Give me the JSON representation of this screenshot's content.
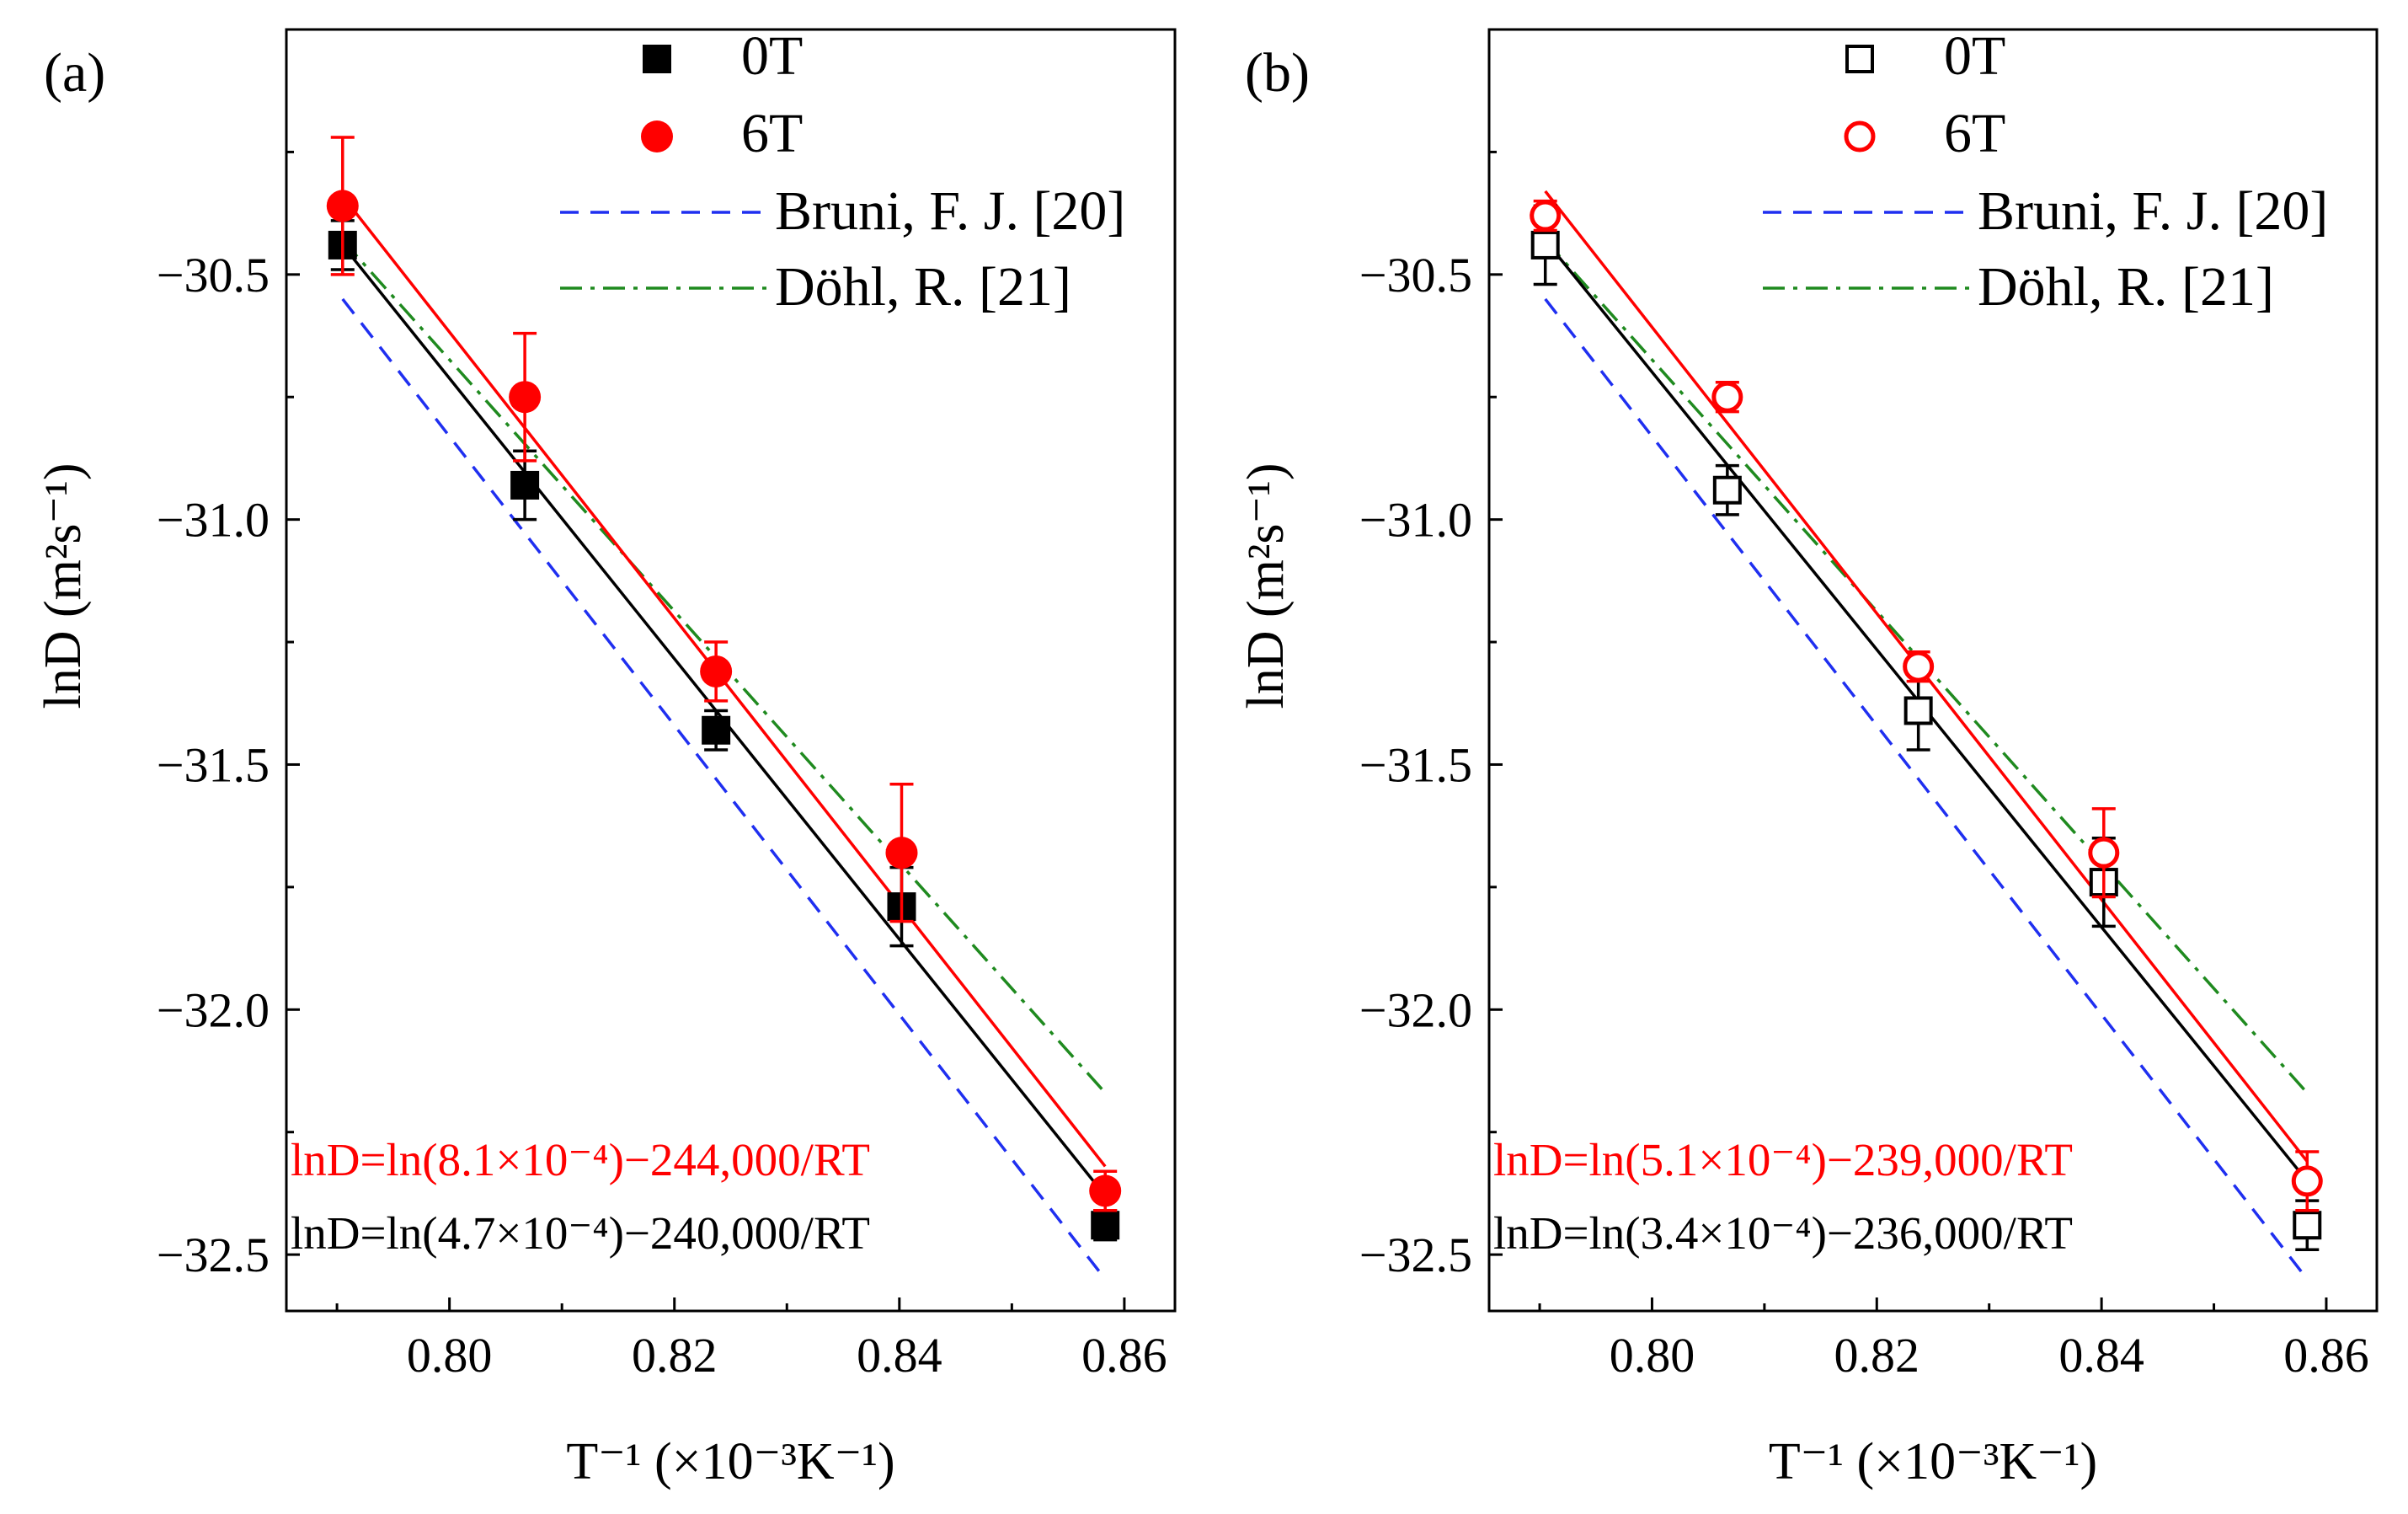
{
  "chart_data": [
    {
      "type": "scatter",
      "panel_label": "(a)",
      "xlabel": "T⁻¹ (×10⁻³K⁻¹)",
      "ylabel": "lnD (m²s⁻¹)",
      "xlim": [
        0.7855,
        0.8645
      ],
      "ylim": [
        -32.615,
        -30.0
      ],
      "xticks": [
        "0.80",
        "0.82",
        "0.84",
        "0.86"
      ],
      "yticks": [
        "−30.5",
        "−31.0",
        "−31.5",
        "−32.0",
        "−32.5"
      ],
      "legend_position": "top-right",
      "series": [
        {
          "name": "0T",
          "marker": "square-filled",
          "color": "#000000",
          "x": [
            0.7905,
            0.8067,
            0.8237,
            0.8402,
            0.8583
          ],
          "y": [
            -30.44,
            -30.93,
            -31.43,
            -31.79,
            -32.44
          ],
          "err": [
            0.05,
            0.07,
            0.04,
            0.08,
            0.03
          ]
        },
        {
          "name": "6T",
          "marker": "circle-filled",
          "color": "#ff0000",
          "x": [
            0.7905,
            0.8067,
            0.8237,
            0.8402,
            0.8583
          ],
          "y": [
            -30.36,
            -30.75,
            -31.31,
            -31.68,
            -32.37
          ],
          "err": [
            0.14,
            0.13,
            0.06,
            0.14,
            0.04
          ]
        },
        {
          "name": "Bruni, F. J. [20]",
          "style": "dashed",
          "color": "#1f2ff0",
          "x": [
            0.7905,
            0.8583
          ],
          "y": [
            -30.55,
            -32.55
          ]
        },
        {
          "name": "Döhl, R. [21]",
          "style": "dash-dot",
          "color": "#1f8a1f",
          "x": [
            0.7905,
            0.8583
          ],
          "y": [
            -30.43,
            -32.17
          ]
        }
      ],
      "fit_lines": [
        {
          "color": "#000000",
          "x": [
            0.7905,
            0.8583
          ],
          "y": [
            -30.44,
            -32.38
          ]
        },
        {
          "color": "#ff0000",
          "x": [
            0.7905,
            0.8583
          ],
          "y": [
            -30.34,
            -32.32
          ]
        }
      ],
      "equations": [
        {
          "text": "lnD=ln(8.1×10⁻⁴)−244,000/RT",
          "color": "#ff0000"
        },
        {
          "text": "lnD=ln(4.7×10⁻⁴)−240,000/RT",
          "color": "#000000"
        }
      ]
    },
    {
      "type": "scatter",
      "panel_label": "(b)",
      "xlabel": "T⁻¹ (×10⁻³K⁻¹)",
      "ylabel": "lnD (m²s⁻¹)",
      "xlim": [
        0.7855,
        0.8645
      ],
      "ylim": [
        -32.615,
        -30.0
      ],
      "xticks": [
        "0.80",
        "0.82",
        "0.84",
        "0.86"
      ],
      "yticks": [
        "−30.5",
        "−31.0",
        "−31.5",
        "−32.0",
        "−32.5"
      ],
      "legend_position": "top-right",
      "series": [
        {
          "name": "0T",
          "marker": "square-open",
          "color": "#000000",
          "x": [
            0.7905,
            0.8067,
            0.8237,
            0.8402,
            0.8583
          ],
          "y": [
            -30.44,
            -30.94,
            -31.39,
            -31.74,
            -32.44
          ],
          "err": [
            0.08,
            0.05,
            0.08,
            0.09,
            0.05
          ]
        },
        {
          "name": "6T",
          "marker": "circle-open",
          "color": "#ff0000",
          "x": [
            0.7905,
            0.8067,
            0.8237,
            0.8402,
            0.8583
          ],
          "y": [
            -30.38,
            -30.75,
            -31.3,
            -31.68,
            -32.35
          ],
          "err": [
            0.03,
            0.03,
            0.03,
            0.09,
            0.06
          ]
        },
        {
          "name": "Bruni, F. J. [20]",
          "style": "dashed",
          "color": "#1f2ff0",
          "x": [
            0.7905,
            0.8583
          ],
          "y": [
            -30.55,
            -32.55
          ]
        },
        {
          "name": "Döhl, R. [21]",
          "style": "dash-dot",
          "color": "#1f8a1f",
          "x": [
            0.7905,
            0.8583
          ],
          "y": [
            -30.43,
            -32.17
          ]
        }
      ],
      "fit_lines": [
        {
          "color": "#000000",
          "x": [
            0.7905,
            0.8583
          ],
          "y": [
            -30.43,
            -32.35
          ]
        },
        {
          "color": "#ff0000",
          "x": [
            0.7905,
            0.8583
          ],
          "y": [
            -30.33,
            -32.31
          ]
        }
      ],
      "equations": [
        {
          "text": "lnD=ln(5.1×10⁻⁴)−239,000/RT",
          "color": "#ff0000"
        },
        {
          "text": "lnD=ln(3.4×10⁻⁴)−236,000/RT",
          "color": "#000000"
        }
      ]
    }
  ]
}
